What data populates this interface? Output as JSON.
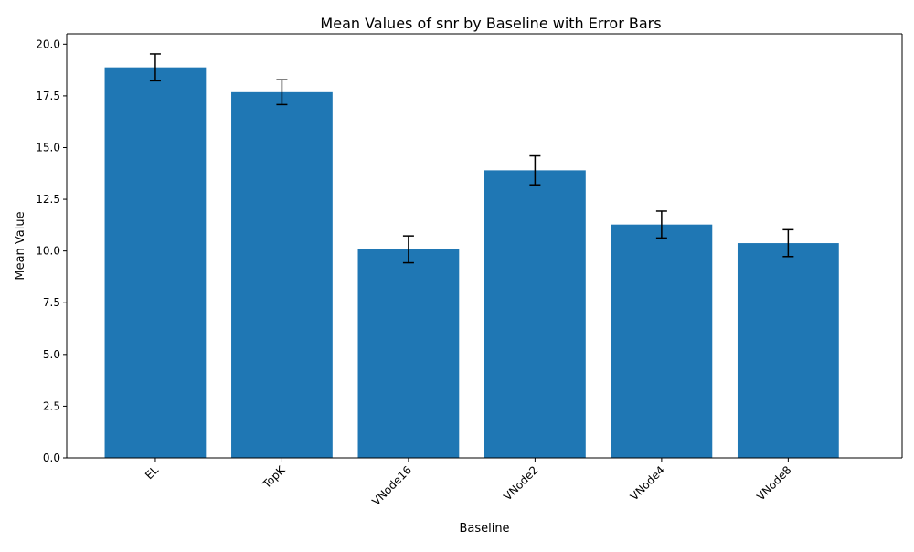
{
  "chart_data": {
    "type": "bar",
    "title": "Mean Values of snr by Baseline with Error Bars",
    "xlabel": "Baseline",
    "ylabel": "Mean Value",
    "categories": [
      "EL",
      "TopK",
      "VNode16",
      "VNode2",
      "VNode4",
      "VNode8"
    ],
    "values": [
      18.88,
      17.68,
      10.08,
      13.9,
      11.28,
      10.38
    ],
    "error": [
      0.65,
      0.6,
      0.65,
      0.7,
      0.65,
      0.65
    ],
    "ylim": [
      0,
      20.5
    ],
    "yticks": [
      0.0,
      2.5,
      5.0,
      7.5,
      10.0,
      12.5,
      15.0,
      17.5,
      20.0
    ],
    "ytick_labels": [
      "0.0",
      "2.5",
      "5.0",
      "7.5",
      "10.0",
      "12.5",
      "15.0",
      "17.5",
      "20.0"
    ],
    "x_tick_rotation_deg": 45,
    "grid": false,
    "legend": "none",
    "colors": {
      "bar": "#1f77b4",
      "error_bar": "#000000",
      "axis": "#000000"
    }
  }
}
